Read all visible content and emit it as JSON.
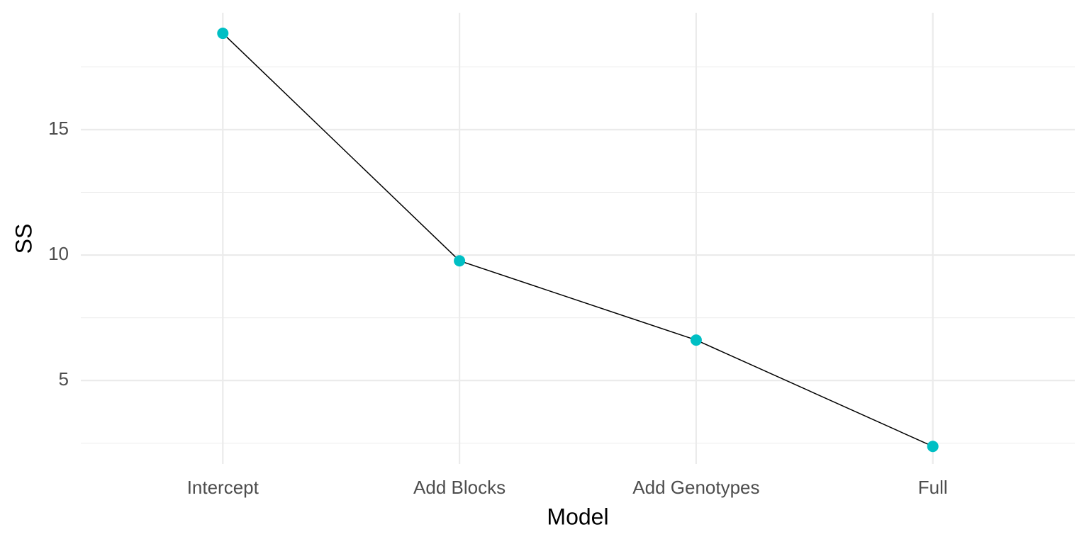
{
  "chart_data": {
    "type": "line",
    "x_label": "Model",
    "y_label": "SS",
    "categories": [
      "Intercept",
      "Add Blocks",
      "Add Genotypes",
      "Full"
    ],
    "values": [
      18.84,
      9.77,
      6.61,
      2.37
    ],
    "line_color": "#000000",
    "point_color": "#00bfc4",
    "ylim": [
      1.67,
      19.66
    ],
    "yticks": [
      5,
      10,
      15
    ],
    "grid": true
  }
}
